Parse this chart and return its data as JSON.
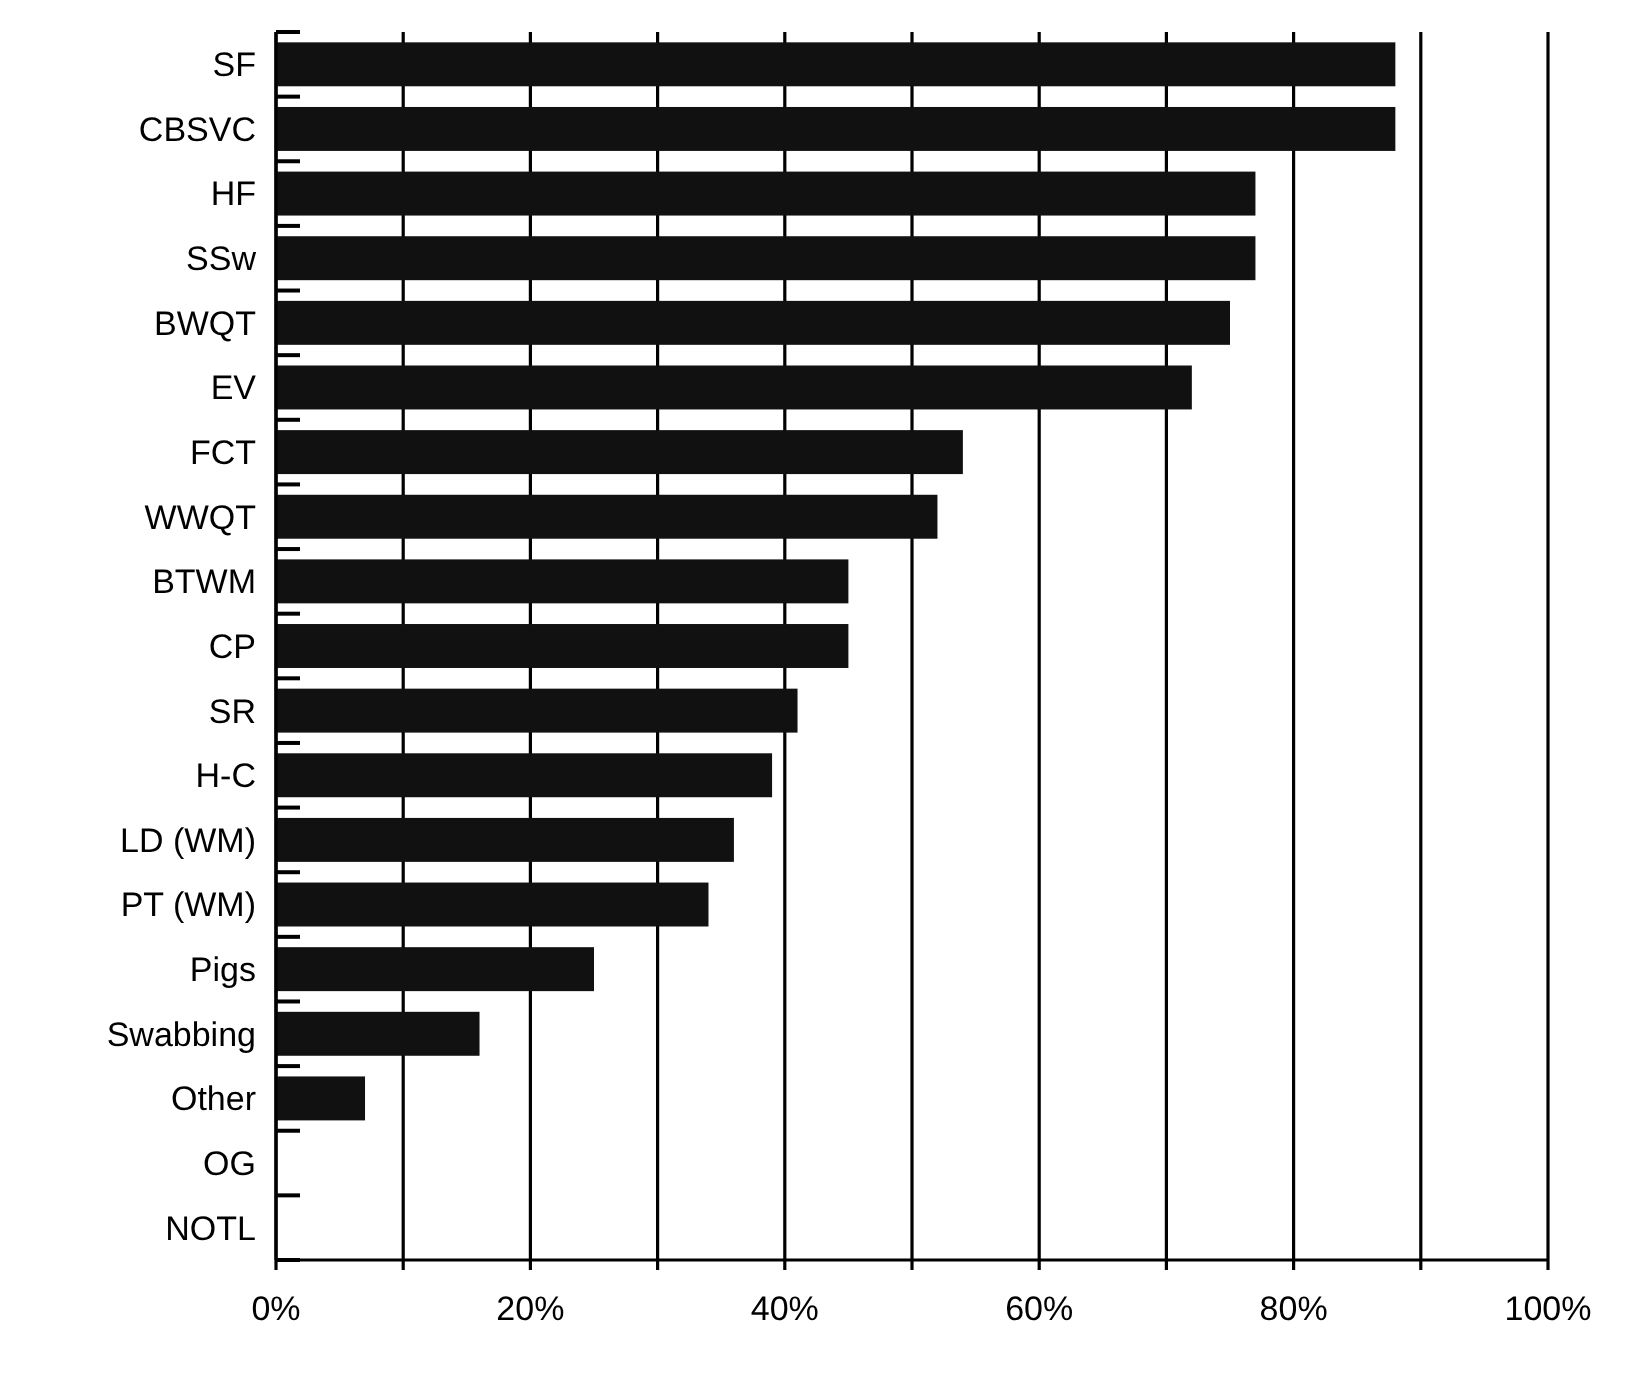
{
  "chart_data": {
    "type": "bar",
    "orientation": "horizontal",
    "categories": [
      "SF",
      "CBSVC",
      "HF",
      "SSw",
      "BWQT",
      "EV",
      "FCT",
      "WWQT",
      "BTWM",
      "CP",
      "SR",
      "H-C",
      "LD (WM)",
      "PT (WM)",
      "Pigs",
      "Swabbing",
      "Other",
      "OG",
      "NOTL"
    ],
    "values": [
      88,
      88,
      77,
      77,
      75,
      72,
      54,
      52,
      45,
      45,
      41,
      39,
      36,
      34,
      25,
      16,
      7,
      0,
      0
    ],
    "color": "#111111",
    "xlim": [
      0,
      100
    ],
    "xticks": [
      {
        "value": 0,
        "label": "0%"
      },
      {
        "value": 10,
        "label": null
      },
      {
        "value": 20,
        "label": "20%"
      },
      {
        "value": 30,
        "label": null
      },
      {
        "value": 40,
        "label": "40%"
      },
      {
        "value": 50,
        "label": null
      },
      {
        "value": 60,
        "label": "60%"
      },
      {
        "value": 70,
        "label": null
      },
      {
        "value": 80,
        "label": "80%"
      },
      {
        "value": 90,
        "label": null
      },
      {
        "value": 100,
        "label": "100%"
      }
    ],
    "grid": "x"
  }
}
